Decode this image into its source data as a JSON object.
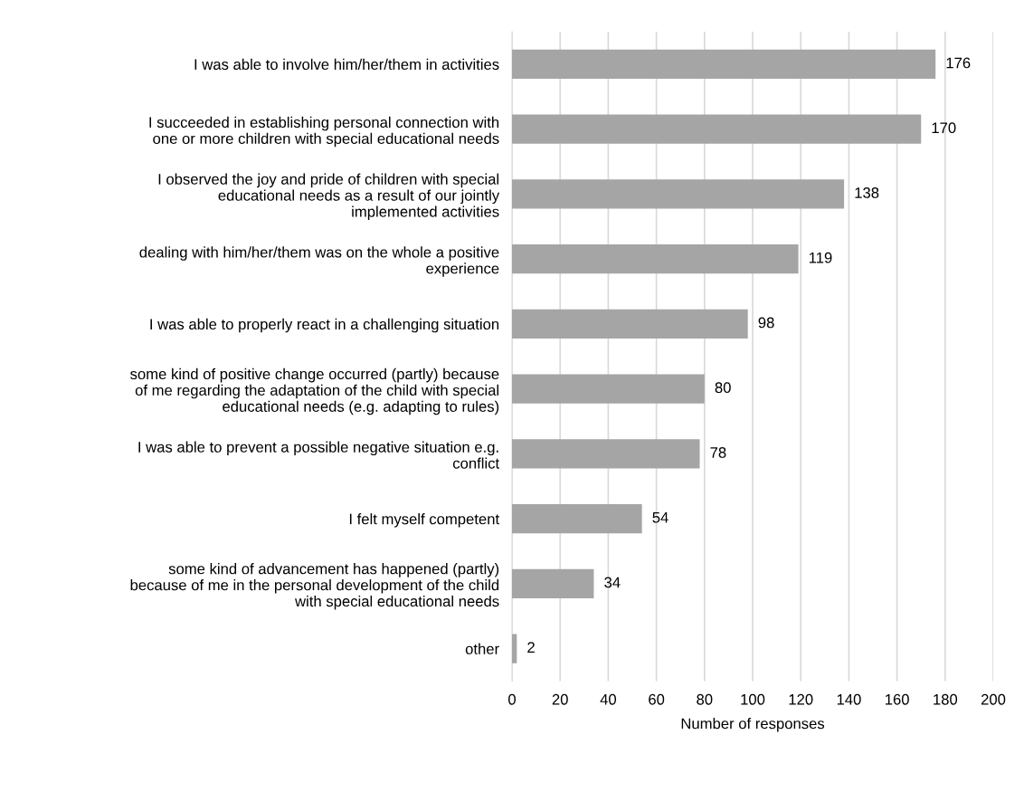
{
  "chart_data": {
    "type": "bar",
    "orientation": "horizontal",
    "xlabel": "Number of responses",
    "categories": [
      "I was able to involve him/her/them in activities",
      "I succeeded in establishing personal connection with\none or more children with special educational needs",
      "I observed the joy and pride of children with special\neducational needs as a result of our jointly\nimplemented activities",
      "dealing with him/her/them was on the whole a positive\nexperience",
      "I was able to properly react in a challenging situation",
      "some kind of positive change occurred (partly) because\nof me regarding the adaptation of the child with special\neducational needs (e.g. adapting to rules)",
      "I was able to prevent a possible negative situation e.g.\nconflict",
      "I felt myself competent",
      "some kind of advancement has happened (partly)\nbecause of me in the personal development of the child\nwith special educational needs",
      "other"
    ],
    "values": [
      176,
      170,
      138,
      119,
      98,
      80,
      78,
      54,
      34,
      2
    ],
    "color": "#a5a5a5",
    "xlim": [
      0,
      200
    ],
    "xticks": [
      0,
      20,
      40,
      60,
      80,
      100,
      120,
      140,
      160,
      180,
      200
    ],
    "grid": "x",
    "data_labels": true
  }
}
